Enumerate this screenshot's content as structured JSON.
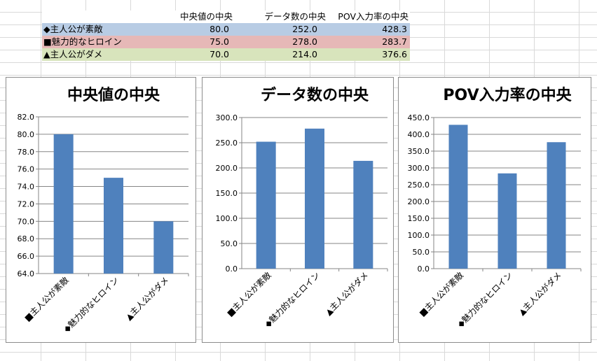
{
  "table": {
    "headers": [
      "中央値の中央",
      "データ数の中央",
      "POV入力率の中央"
    ],
    "rows": [
      {
        "label": "◆主人公が素敵",
        "values": [
          "80.0",
          "252.0",
          "428.3"
        ]
      },
      {
        "label": "■魅力的なヒロイン",
        "values": [
          "75.0",
          "278.0",
          "283.7"
        ]
      },
      {
        "label": "▲主人公がダメ",
        "values": [
          "70.0",
          "214.0",
          "376.6"
        ]
      }
    ]
  },
  "colors": {
    "bar": "#4f81bd",
    "grid": "#868686",
    "axis": "#868686"
  },
  "chart_data": [
    {
      "type": "bar",
      "title": "中央値の中央",
      "categories": [
        "■主人公が素敵",
        "◆魅力的なヒロイン",
        "▲主人公がダメ"
      ],
      "values": [
        80.0,
        75.0,
        70.0
      ],
      "ylim": [
        64.0,
        82.0
      ],
      "ytick_step": 2,
      "grid": true
    },
    {
      "type": "bar",
      "title": "データ数の中央",
      "categories": [
        "■主人公が素敵",
        "◆魅力的なヒロイン",
        "▲主人公がダメ"
      ],
      "values": [
        252.0,
        278.0,
        214.0
      ],
      "ylim": [
        0.0,
        300.0
      ],
      "ytick_step": 50,
      "grid": true
    },
    {
      "type": "bar",
      "title": "POV入力率の中央",
      "categories": [
        "■主人公が素敵",
        "◆魅力的なヒロイン",
        "▲主人公がダメ"
      ],
      "values": [
        428.3,
        283.7,
        376.6
      ],
      "ylim": [
        0.0,
        450.0
      ],
      "ytick_step": 50,
      "grid": true
    }
  ]
}
